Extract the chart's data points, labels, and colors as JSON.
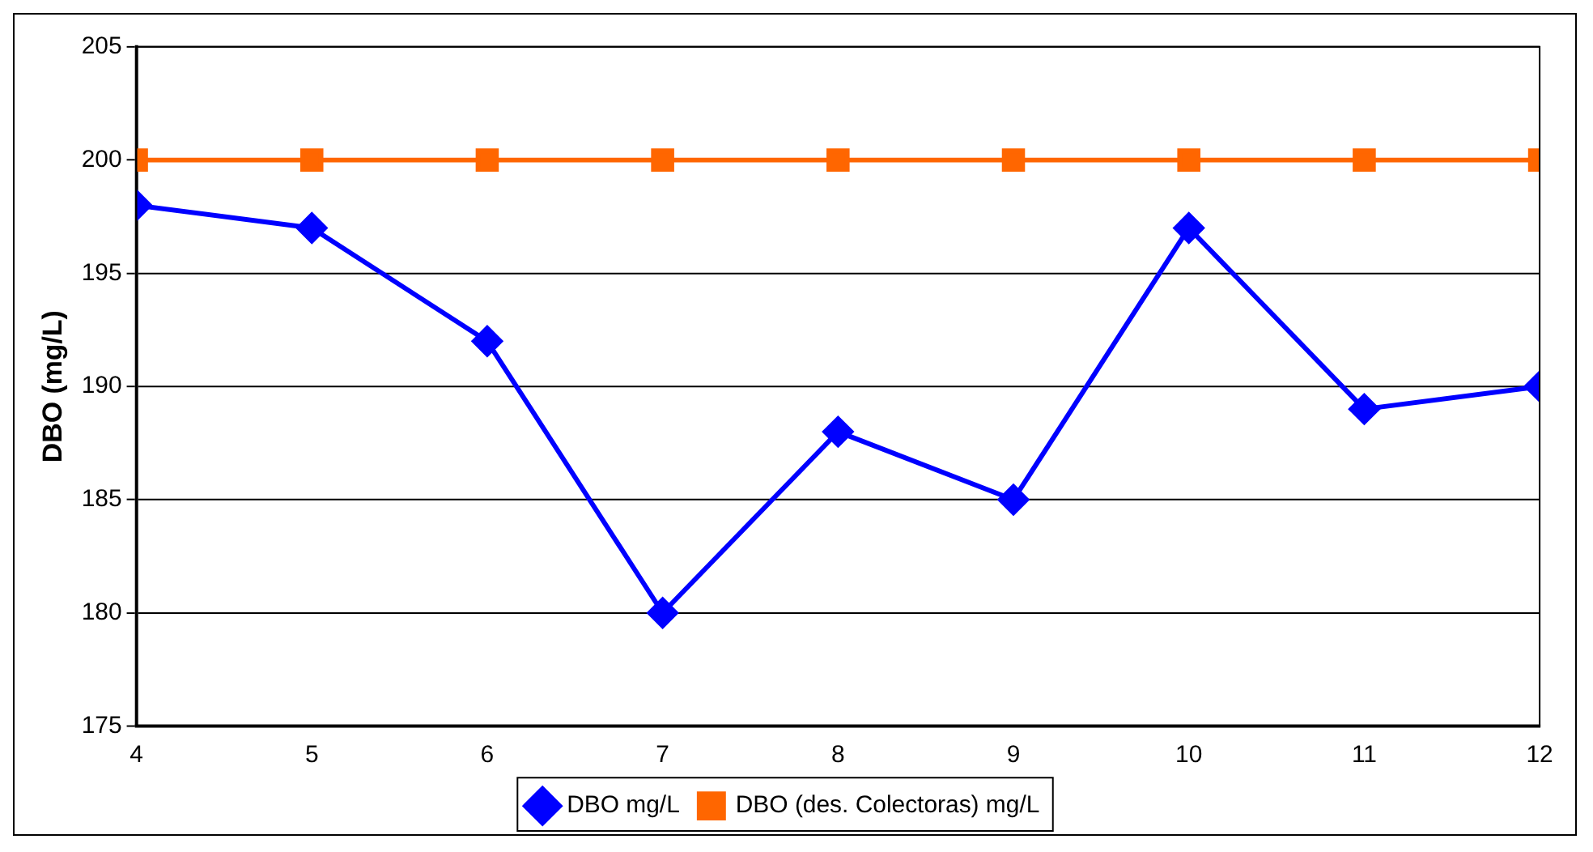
{
  "chart_data": {
    "type": "line",
    "ylabel": "DBO (mg/L)",
    "x": [
      4,
      5,
      6,
      7,
      8,
      9,
      10,
      11,
      12
    ],
    "xlim": [
      4,
      12
    ],
    "xticks": [
      4,
      5,
      6,
      7,
      8,
      9,
      10,
      11,
      12
    ],
    "ylim": [
      175,
      205
    ],
    "yticks": [
      175,
      180,
      185,
      190,
      195,
      200,
      205
    ],
    "grid": "y",
    "legend": "bottom",
    "line_style": "solid",
    "series": [
      {
        "name": "DBO mg/L",
        "color": "#0000ff",
        "marker": "diamond",
        "values": [
          198,
          197,
          192,
          180,
          188,
          185,
          197,
          189,
          190
        ]
      },
      {
        "name": "DBO (des. Colectoras) mg/L",
        "color": "#ff6600",
        "marker": "square",
        "values": [
          200,
          200,
          200,
          200,
          200,
          200,
          200,
          200,
          200
        ]
      }
    ]
  }
}
